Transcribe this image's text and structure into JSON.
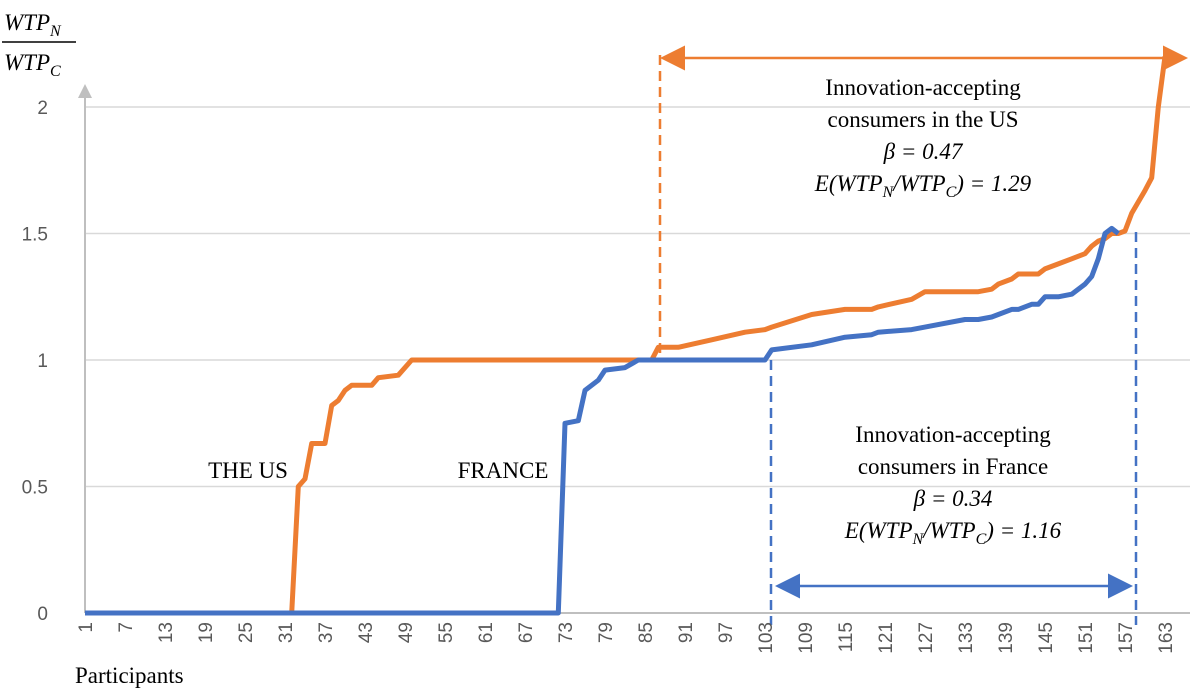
{
  "chart_data": {
    "type": "line",
    "ylabel": {
      "numerator": [
        "WTP",
        "N"
      ],
      "denominator": [
        "WTP",
        "C"
      ]
    },
    "xlabel": "Participants",
    "x": [
      1,
      32,
      33,
      34,
      35,
      37,
      38,
      39,
      40,
      41,
      44,
      45,
      48,
      50,
      72,
      73,
      75,
      76,
      78,
      79,
      82,
      84,
      86,
      87,
      90,
      95,
      100,
      103,
      104,
      110,
      115,
      119,
      120,
      125,
      127,
      133,
      135,
      137,
      138,
      140,
      141,
      143,
      144,
      145,
      147,
      149,
      151,
      152,
      153,
      154,
      155,
      156,
      157,
      158,
      160,
      161,
      162,
      163
    ],
    "series": [
      {
        "name": "THE US",
        "color": "#ed7d31",
        "values": [
          0,
          0,
          0.5,
          0.53,
          0.67,
          0.67,
          0.82,
          0.84,
          0.88,
          0.9,
          0.9,
          0.93,
          0.94,
          1,
          1,
          1,
          1,
          1,
          1,
          1,
          1,
          1,
          1,
          1.05,
          1.05,
          1.08,
          1.11,
          1.12,
          1.13,
          1.18,
          1.2,
          1.2,
          1.21,
          1.24,
          1.27,
          1.27,
          1.27,
          1.28,
          1.3,
          1.32,
          1.34,
          1.34,
          1.34,
          1.36,
          1.38,
          1.4,
          1.42,
          1.45,
          1.47,
          1.48,
          1.5,
          1.5,
          1.51,
          1.58,
          1.67,
          1.72,
          2.0,
          2.2
        ]
      },
      {
        "name": "FRANCE",
        "color": "#4472c4",
        "values": [
          0,
          0,
          0,
          0,
          0,
          0,
          0,
          0,
          0,
          0,
          0,
          0,
          0,
          0,
          0,
          0.75,
          0.76,
          0.88,
          0.92,
          0.96,
          0.97,
          1,
          1,
          1,
          1,
          1,
          1,
          1,
          1.04,
          1.06,
          1.09,
          1.1,
          1.11,
          1.12,
          1.13,
          1.16,
          1.16,
          1.17,
          1.18,
          1.2,
          1.2,
          1.22,
          1.22,
          1.25,
          1.25,
          1.26,
          1.3,
          1.33,
          1.4,
          1.5,
          1.52,
          1.5,
          null,
          null,
          null,
          null,
          null,
          null
        ]
      }
    ],
    "xlim": [
      1,
      163
    ],
    "xticks": [
      1,
      7,
      13,
      19,
      25,
      31,
      37,
      43,
      49,
      55,
      61,
      67,
      73,
      79,
      85,
      91,
      97,
      103,
      109,
      115,
      121,
      127,
      133,
      139,
      145,
      151,
      157,
      163
    ],
    "ylim": [
      0,
      2
    ],
    "yticks": [
      0,
      0.5,
      1,
      1.5,
      2
    ],
    "grid": true,
    "annotations": [
      {
        "lines": [
          "Innovation-accepting",
          "consumers in the US",
          "β = 0.47",
          [
            "E(WTP",
            "N",
            "/WTP",
            "C",
            ") = 1.29"
          ]
        ]
      },
      {
        "lines": [
          "Innovation-accepting",
          "consumers in France",
          "β = 0.34",
          [
            "E(WTP",
            "N",
            "/WTP",
            "C",
            ") = 1.16"
          ]
        ]
      }
    ]
  }
}
